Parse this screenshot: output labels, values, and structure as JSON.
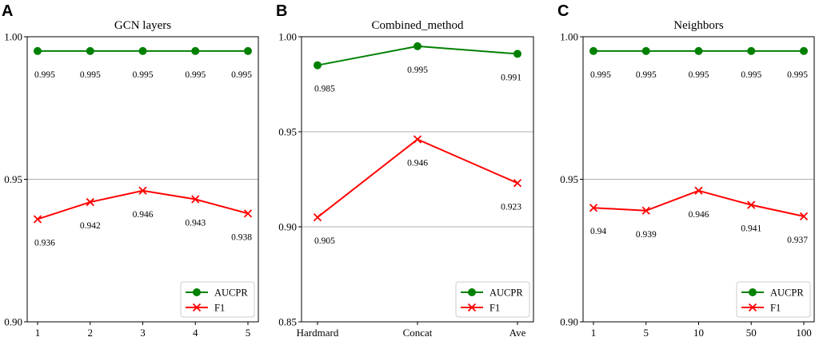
{
  "chart_data": [
    {
      "panel": "A",
      "type": "line",
      "title": "GCN layers",
      "categories": [
        "1",
        "2",
        "3",
        "4",
        "5"
      ],
      "ylim": [
        0.9,
        1.0
      ],
      "yticks": [
        "0.90",
        "0.95",
        "1.00"
      ],
      "grid": "horizontal",
      "legend": "bottom-right",
      "series": [
        {
          "name": "AUCPR",
          "color": "#008000",
          "marker": "circle",
          "values": [
            0.995,
            0.995,
            0.995,
            0.995,
            0.995
          ],
          "labels": [
            "0.995",
            "0.995",
            "0.995",
            "0.995",
            "0.995"
          ]
        },
        {
          "name": "F1",
          "color": "#ff0000",
          "marker": "x",
          "values": [
            0.936,
            0.942,
            0.946,
            0.943,
            0.938
          ],
          "labels": [
            "0.936",
            "0.942",
            "0.946",
            "0.943",
            "0.938"
          ]
        }
      ]
    },
    {
      "panel": "B",
      "type": "line",
      "title": "Combined_method",
      "categories": [
        "Hardmard",
        "Concat",
        "Ave"
      ],
      "ylim": [
        0.85,
        1.0
      ],
      "yticks": [
        "0.85",
        "0.90",
        "0.95",
        "1.00"
      ],
      "grid": "horizontal",
      "legend": "bottom-right",
      "series": [
        {
          "name": "AUCPR",
          "color": "#008000",
          "marker": "circle",
          "values": [
            0.985,
            0.995,
            0.991
          ],
          "labels": [
            "0.985",
            "0.995",
            "0.991"
          ]
        },
        {
          "name": "F1",
          "color": "#ff0000",
          "marker": "x",
          "values": [
            0.905,
            0.946,
            0.923
          ],
          "labels": [
            "0.905",
            "0.946",
            "0.923"
          ]
        }
      ]
    },
    {
      "panel": "C",
      "type": "line",
      "title": "Neighbors",
      "categories": [
        "1",
        "5",
        "10",
        "50",
        "100"
      ],
      "ylim": [
        0.9,
        1.0
      ],
      "yticks": [
        "0.90",
        "0.95",
        "1.00"
      ],
      "grid": "horizontal",
      "legend": "bottom-right",
      "series": [
        {
          "name": "AUCPR",
          "color": "#008000",
          "marker": "circle",
          "values": [
            0.995,
            0.995,
            0.995,
            0.995,
            0.995
          ],
          "labels": [
            "0.995",
            "0.995",
            "0.995",
            "0.995",
            "0.995"
          ]
        },
        {
          "name": "F1",
          "color": "#ff0000",
          "marker": "x",
          "values": [
            0.94,
            0.939,
            0.946,
            0.941,
            0.937
          ],
          "labels": [
            "0.94",
            "0.939",
            "0.946",
            "0.941",
            "0.937"
          ]
        }
      ]
    }
  ]
}
